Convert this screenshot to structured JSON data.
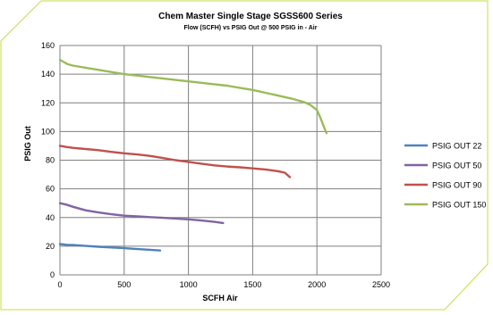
{
  "colors": {
    "frame_border": "#c8dc3c",
    "grid": "#7f7f7f",
    "background": "#ffffff"
  },
  "chart_data": {
    "type": "line",
    "title": "Chem Master Single Stage SGSS600 Series",
    "subtitle": "Flow (SCFH) vs PSIG Out @ 500 PSIG in - Air",
    "xlabel": "SCFH Air",
    "ylabel": "PSIG Out",
    "xlim": [
      0,
      2500
    ],
    "ylim": [
      0,
      160
    ],
    "xticks": [
      0,
      500,
      1000,
      1500,
      2000,
      2500
    ],
    "yticks": [
      0,
      20,
      40,
      60,
      80,
      100,
      120,
      140,
      160
    ],
    "grid": true,
    "legend_position": "right",
    "series": [
      {
        "name": "PSIG OUT 22",
        "color": "#4f81bd",
        "points": [
          [
            0,
            21.5
          ],
          [
            50,
            21
          ],
          [
            100,
            20.8
          ],
          [
            200,
            20.2
          ],
          [
            300,
            19.6
          ],
          [
            400,
            19.1
          ],
          [
            500,
            18.6
          ],
          [
            600,
            18
          ],
          [
            700,
            17.5
          ],
          [
            780,
            17
          ]
        ]
      },
      {
        "name": "PSIG OUT 50",
        "color": "#8064a2",
        "points": [
          [
            0,
            50
          ],
          [
            50,
            49
          ],
          [
            100,
            47.5
          ],
          [
            200,
            45
          ],
          [
            300,
            43.5
          ],
          [
            400,
            42.3
          ],
          [
            500,
            41.3
          ],
          [
            600,
            40.8
          ],
          [
            700,
            40.3
          ],
          [
            800,
            39.8
          ],
          [
            900,
            39.3
          ],
          [
            1000,
            38.7
          ],
          [
            1100,
            37.9
          ],
          [
            1200,
            37
          ],
          [
            1270,
            36.2
          ]
        ]
      },
      {
        "name": "PSIG OUT 90",
        "color": "#c0504d",
        "points": [
          [
            0,
            90
          ],
          [
            50,
            89.2
          ],
          [
            100,
            88.6
          ],
          [
            200,
            87.8
          ],
          [
            300,
            87
          ],
          [
            400,
            85.8
          ],
          [
            500,
            84.8
          ],
          [
            600,
            84
          ],
          [
            700,
            83
          ],
          [
            800,
            81.5
          ],
          [
            900,
            80
          ],
          [
            1000,
            78.8
          ],
          [
            1100,
            77.6
          ],
          [
            1200,
            76.4
          ],
          [
            1300,
            75.6
          ],
          [
            1400,
            75
          ],
          [
            1500,
            74.3
          ],
          [
            1600,
            73.5
          ],
          [
            1700,
            72.3
          ],
          [
            1750,
            71.3
          ],
          [
            1790,
            68.2
          ]
        ]
      },
      {
        "name": "PSIG OUT 150",
        "color": "#9bbb59",
        "points": [
          [
            0,
            150
          ],
          [
            30,
            148.5
          ],
          [
            60,
            147
          ],
          [
            100,
            146
          ],
          [
            200,
            144.5
          ],
          [
            300,
            143
          ],
          [
            400,
            141.5
          ],
          [
            500,
            140
          ],
          [
            600,
            139
          ],
          [
            700,
            138
          ],
          [
            800,
            137
          ],
          [
            900,
            136
          ],
          [
            1000,
            135
          ],
          [
            1100,
            134
          ],
          [
            1200,
            133
          ],
          [
            1300,
            132
          ],
          [
            1400,
            130.5
          ],
          [
            1500,
            129
          ],
          [
            1600,
            127
          ],
          [
            1700,
            125
          ],
          [
            1800,
            123
          ],
          [
            1900,
            120.5
          ],
          [
            1950,
            118.5
          ],
          [
            2000,
            115
          ],
          [
            2030,
            109
          ],
          [
            2060,
            102
          ],
          [
            2075,
            98.8
          ]
        ]
      }
    ]
  }
}
